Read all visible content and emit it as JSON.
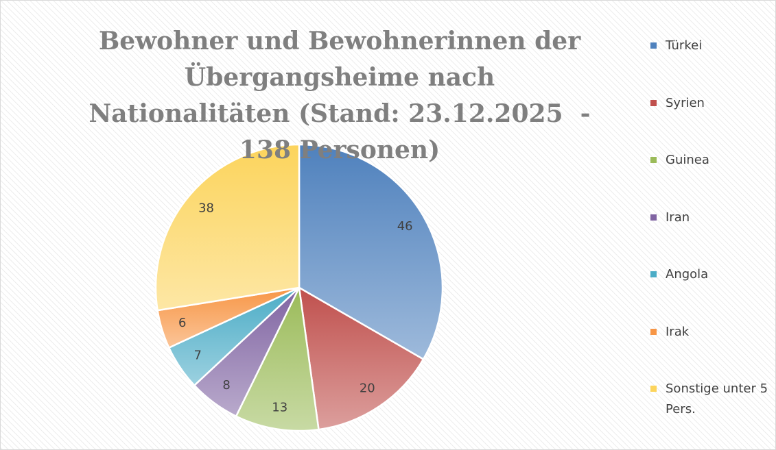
{
  "chart_data": {
    "type": "pie",
    "title": "Bewohner und Bewohnerinnen der Übergangsheime nach Nationalitäten (Stand: 23.12.2025  - 138 Personen)",
    "categories": [
      "Türkei",
      "Syrien",
      "Guinea",
      "Iran",
      "Angola",
      "Irak",
      "Sonstige unter 5 Pers."
    ],
    "values": [
      46,
      20,
      13,
      8,
      7,
      6,
      38
    ],
    "colors": [
      "#4f81bd",
      "#c0504d",
      "#9bbb59",
      "#8064a2",
      "#4bacc6",
      "#f79646",
      "#fcd45c"
    ],
    "legend": "right"
  }
}
